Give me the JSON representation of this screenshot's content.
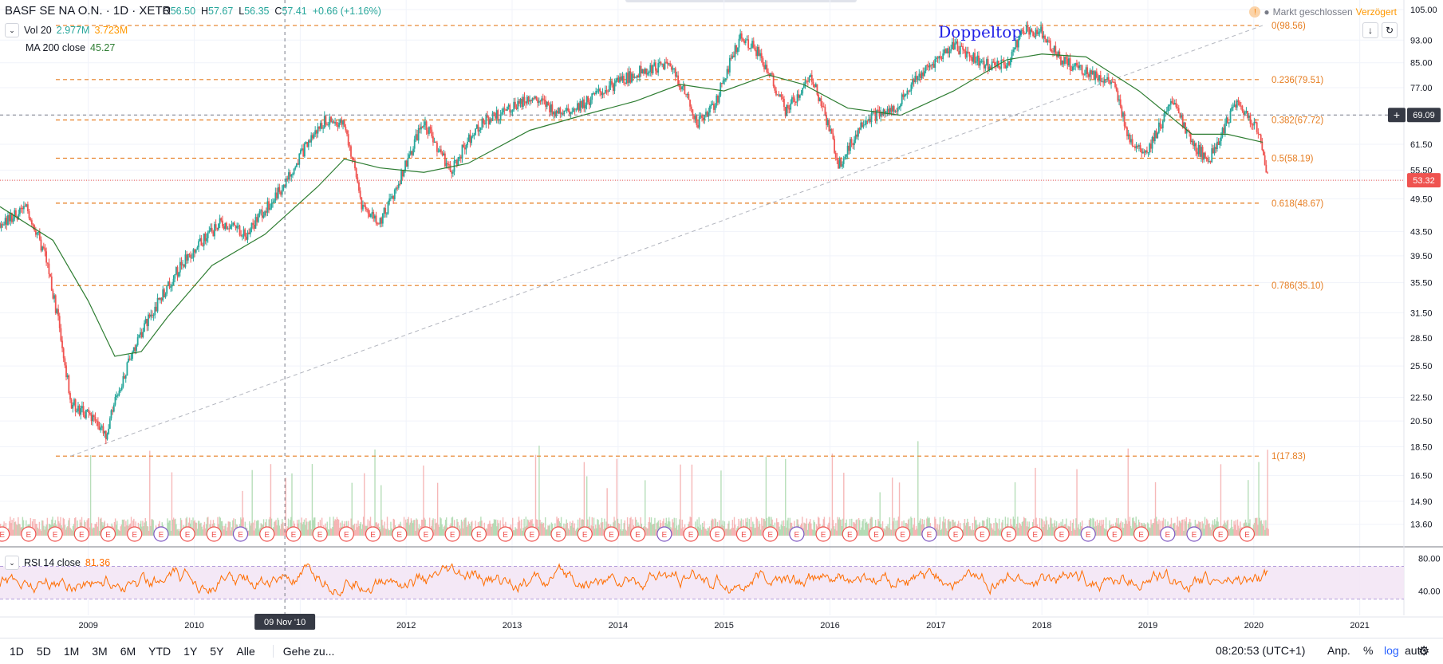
{
  "header": {
    "title": "BASF SE NA O.N. · 1D · XETR",
    "ohlc": {
      "o_key": "O",
      "o": "56.50",
      "h_key": "H",
      "h": "57.67",
      "l_key": "L",
      "l": "56.35",
      "c_key": "C",
      "c": "57.41",
      "chg": "+0.66 (+1.16%)"
    },
    "vol_label": "Vol 20",
    "vol_v1": "2.977M",
    "vol_v2": "3.723M",
    "ma_label": "MA 200 close",
    "ma_value": "45.27",
    "market_status": "Markt geschlossen",
    "delay": "Verzögert"
  },
  "rsi": {
    "label": "RSI 14 close",
    "value": "81.36"
  },
  "bottom": {
    "ranges": [
      "1D",
      "5D",
      "1M",
      "3M",
      "6M",
      "YTD",
      "1Y",
      "5Y",
      "Alle"
    ],
    "goto": "Gehe zu...",
    "time": "08:20:53 (UTC+1)",
    "adj": "Anp.",
    "pct": "%",
    "log": "log",
    "auto": "auto"
  },
  "colors": {
    "up": "#26a69a",
    "down": "#ef5350",
    "fib": "#e67e22",
    "ma": "#2e7d32",
    "rsi": "#ff6d00",
    "rsi_band": "#7e57c2",
    "annotation": "#1e1ee6",
    "log_active": "#2962ff"
  },
  "icons": {
    "scroll": "arrow-down-icon",
    "reset": "sync-icon",
    "settings": "gear-icon",
    "collapse": "chevron-down-icon",
    "warn": "warning-icon"
  },
  "chart_data": {
    "type": "candlestick",
    "title": "BASF SE NA O.N. · 1D · XETR",
    "x_labels": [
      "2009",
      "2010",
      "2011",
      "2012",
      "2013",
      "2014",
      "2015",
      "2016",
      "2017",
      "2018",
      "2019",
      "2020",
      "2021"
    ],
    "x_range": [
      "2008-03",
      "2021-06"
    ],
    "y_scale": "log",
    "y_ticks": [
      "105.00",
      "93.00",
      "85.00",
      "77.00",
      "69.09",
      "61.50",
      "55.50",
      "53.32",
      "49.50",
      "43.50",
      "39.50",
      "35.50",
      "31.50",
      "28.50",
      "25.50",
      "22.50",
      "20.50",
      "18.50",
      "16.50",
      "14.90",
      "13.60"
    ],
    "ylim": [
      13.0,
      107.0
    ],
    "price_path": [
      [
        "2008-03",
        45.0
      ],
      [
        "2008-06",
        47.5
      ],
      [
        "2008-08",
        40.0
      ],
      [
        "2008-10",
        28.0
      ],
      [
        "2008-11",
        22.0
      ],
      [
        "2009-01",
        21.0
      ],
      [
        "2009-03",
        19.5
      ],
      [
        "2009-06",
        27.0
      ],
      [
        "2009-09",
        33.0
      ],
      [
        "2009-12",
        39.0
      ],
      [
        "2010-04",
        45.0
      ],
      [
        "2010-07",
        43.0
      ],
      [
        "2010-11",
        52.0
      ],
      [
        "2011-02",
        62.0
      ],
      [
        "2011-04",
        68.0
      ],
      [
        "2011-06",
        66.0
      ],
      [
        "2011-08",
        48.0
      ],
      [
        "2011-10",
        45.0
      ],
      [
        "2011-12",
        52.0
      ],
      [
        "2012-03",
        67.0
      ],
      [
        "2012-06",
        55.0
      ],
      [
        "2012-09",
        66.0
      ],
      [
        "2012-12",
        70.0
      ],
      [
        "2013-03",
        74.0
      ],
      [
        "2013-06",
        70.0
      ],
      [
        "2013-09",
        72.0
      ],
      [
        "2013-12",
        77.0
      ],
      [
        "2014-04",
        83.0
      ],
      [
        "2014-07",
        84.0
      ],
      [
        "2014-10",
        67.0
      ],
      [
        "2014-12",
        72.0
      ],
      [
        "2015-03",
        95.0
      ],
      [
        "2015-05",
        88.0
      ],
      [
        "2015-08",
        70.0
      ],
      [
        "2015-11",
        80.0
      ],
      [
        "2016-02",
        56.5
      ],
      [
        "2016-05",
        68.0
      ],
      [
        "2016-08",
        70.0
      ],
      [
        "2016-11",
        80.0
      ],
      [
        "2017-03",
        91.0
      ],
      [
        "2017-06",
        85.0
      ],
      [
        "2017-09",
        84.0
      ],
      [
        "2017-11",
        97.0
      ],
      [
        "2018-01",
        96.0
      ],
      [
        "2018-03",
        86.0
      ],
      [
        "2018-06",
        82.0
      ],
      [
        "2018-09",
        78.0
      ],
      [
        "2018-11",
        62.0
      ],
      [
        "2019-01",
        60.0
      ],
      [
        "2019-04",
        73.0
      ],
      [
        "2019-06",
        61.0
      ],
      [
        "2019-08",
        58.0
      ],
      [
        "2019-11",
        72.0
      ],
      [
        "2020-01",
        67.0
      ],
      [
        "2020-02",
        60.0
      ],
      [
        "2020-02-21",
        53.32
      ]
    ],
    "ma200_path": [
      [
        "2008-03",
        48.0
      ],
      [
        "2008-09",
        42.0
      ],
      [
        "2009-01",
        33.0
      ],
      [
        "2009-04",
        26.5
      ],
      [
        "2009-07",
        27.0
      ],
      [
        "2009-10",
        31.0
      ],
      [
        "2010-03",
        38.0
      ],
      [
        "2010-09",
        43.0
      ],
      [
        "2011-03",
        52.0
      ],
      [
        "2011-06",
        58.0
      ],
      [
        "2011-10",
        56.0
      ],
      [
        "2012-03",
        55.0
      ],
      [
        "2012-08",
        57.0
      ],
      [
        "2013-03",
        65.0
      ],
      [
        "2013-09",
        69.0
      ],
      [
        "2014-03",
        73.0
      ],
      [
        "2014-08",
        78.0
      ],
      [
        "2015-01",
        76.0
      ],
      [
        "2015-06",
        81.0
      ],
      [
        "2015-10",
        78.0
      ],
      [
        "2016-03",
        71.0
      ],
      [
        "2016-09",
        69.0
      ],
      [
        "2017-03",
        76.0
      ],
      [
        "2017-09",
        86.0
      ],
      [
        "2018-01",
        88.0
      ],
      [
        "2018-06",
        87.0
      ],
      [
        "2018-12",
        76.0
      ],
      [
        "2019-06",
        64.0
      ],
      [
        "2019-10",
        64.0
      ],
      [
        "2020-02",
        62.0
      ]
    ],
    "fibonacci": [
      {
        "label": "0(98.56)",
        "value": 98.56
      },
      {
        "label": "0.236(79.51)",
        "value": 79.51
      },
      {
        "label": "0.382(67.72)",
        "value": 67.72
      },
      {
        "label": "0.5(58.19)",
        "value": 58.19
      },
      {
        "label": "0.618(48.67)",
        "value": 48.67
      },
      {
        "label": "0.786(35.10)",
        "value": 35.1
      },
      {
        "label": "1(17.83)",
        "value": 17.83
      }
    ],
    "trendline": [
      [
        "2008-11",
        17.83
      ],
      [
        "2020-02",
        98.56
      ]
    ],
    "annotation": {
      "text": "Doppeltop",
      "date": "2017-06",
      "value": 101.0
    },
    "crosshair": {
      "date_label": "09 Nov '10",
      "date": "2010-11-09",
      "price_label": "69.09",
      "price": 69.09
    },
    "last_price": {
      "label": "53.32",
      "value": 53.32
    },
    "volume_note": "Vol 20",
    "rsi_ticks": [
      "80.00",
      "40.00"
    ],
    "rsi_bands": [
      70,
      30
    ],
    "earnings_marker": "E"
  }
}
